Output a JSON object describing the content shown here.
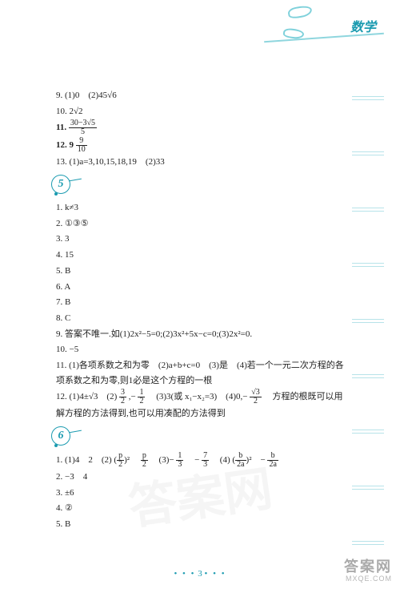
{
  "header": {
    "title": "数学"
  },
  "footer": {
    "dots_left": "• • •",
    "page": "3",
    "dots_right": "• • •"
  },
  "watermark": {
    "cn": "答案网",
    "en": "MXQE.COM",
    "bg": "答案网"
  },
  "block1": {
    "l9": "9. (1)0　(2)45√6",
    "l10": "10. 2√2",
    "l11_label": "11.",
    "l11_top": "30−3√5",
    "l11_bot": "5",
    "l12_label": "12. 9",
    "l12_top": "9",
    "l12_bot": "10",
    "l13": "13. (1)a=3,10,15,18,19　(2)33"
  },
  "section5": {
    "num": "5",
    "l1": "1. k≠3",
    "l2": "2. ①③⑤",
    "l3": "3. 3",
    "l4": "4. 15",
    "l5": "5. B",
    "l6": "6. A",
    "l7": "7. B",
    "l8": "8. C",
    "l9": "9. 答案不唯一.如(1)2x²−5=0;(2)3x²+5x−c=0;(3)2x²=0.",
    "l10": "10. −5",
    "l11": "11. (1)各项系数之和为零　(2)a+b+c=0　(3)是　(4)若一个一元二次方程的各项系数之和为零,则1必是这个方程的一根",
    "l12_a": "12. (1)4±√3　(2)",
    "l12_f1t": "3",
    "l12_f1b": "2",
    "l12_b": ",−",
    "l12_f2t": "1",
    "l12_f2b": "2",
    "l12_c": "　(3)3(或 x₁−x₂=3)　(4)0,−",
    "l12_f3t": "√3",
    "l12_f3b": "2",
    "l12_d": "　方程的根既可以用",
    "l12_line2": "解方程的方法得到,也可以用凑配的方法得到"
  },
  "section6": {
    "num": "6",
    "l1_a": "1. (1)4　2　(2)",
    "l1_p1": "p",
    "l1_p1b": "2",
    "l1_b": "²　",
    "l1_p2": "p",
    "l1_p2b": "2",
    "l1_c": "　(3)−",
    "l1_f1t": "1",
    "l1_f1b": "3",
    "l1_d": "　−",
    "l1_f2t": "7",
    "l1_f2b": "3",
    "l1_e": "　(4)",
    "l1_b1": "b",
    "l1_b1b": "2a",
    "l1_f": "²　−",
    "l1_b2": "b",
    "l1_b2b": "2a",
    "l2": "2. −3　4",
    "l3": "3. ±6",
    "l4": "4. ②",
    "l5": "5. B"
  }
}
